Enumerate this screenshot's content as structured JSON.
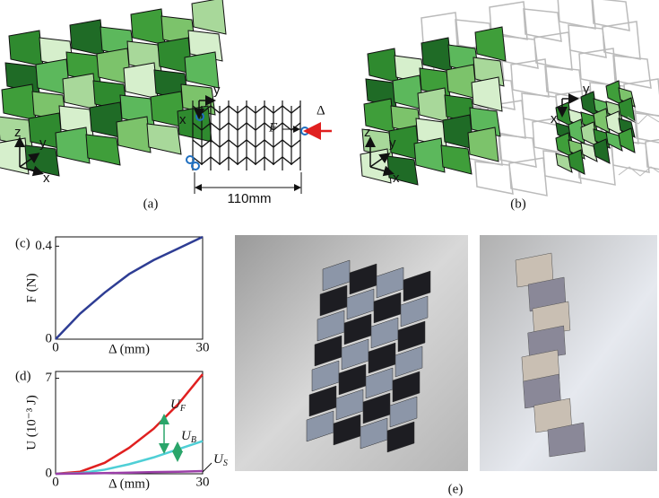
{
  "chart_data": [
    {
      "type": "line",
      "ylabel": "F (N)",
      "xlabel": "Δ (mm)",
      "x": [
        0,
        5,
        10,
        15,
        20,
        25,
        30
      ],
      "xlim": [
        0,
        30
      ],
      "xticks": [
        0,
        30
      ],
      "ylim": [
        0,
        0.44
      ],
      "yticks": [
        0,
        0.4
      ],
      "series": [
        {
          "color": "#2e3d94",
          "values": [
            0,
            0.11,
            0.2,
            0.28,
            0.34,
            0.39,
            0.44
          ]
        }
      ]
    },
    {
      "type": "line",
      "ylabel": "U (10⁻³ J)",
      "xlabel": "Δ (mm)",
      "x": [
        0,
        5,
        10,
        15,
        20,
        25,
        30
      ],
      "xlim": [
        0,
        30
      ],
      "xticks": [
        0,
        30
      ],
      "ylim": [
        0,
        7.5
      ],
      "yticks": [
        0,
        7
      ],
      "series": [
        {
          "color": "#e02020",
          "values": [
            0,
            0.15,
            0.8,
            1.9,
            3.3,
            5.1,
            7.3
          ]
        },
        {
          "color": "#4fcfd6",
          "values": [
            0,
            0.05,
            0.3,
            0.7,
            1.2,
            1.8,
            2.4
          ]
        },
        {
          "color": "#9b3fa8",
          "values": [
            0,
            0.02,
            0.05,
            0.08,
            0.12,
            0.15,
            0.2
          ]
        }
      ],
      "annotations": [
        {
          "text": "U",
          "sub": "F"
        },
        {
          "text": "U",
          "sub": "B"
        },
        {
          "text": "U",
          "sub": "S"
        }
      ]
    }
  ],
  "panels": {
    "labels": [
      "(a)",
      "(b)",
      "(c)",
      "(d)",
      "(e)"
    ],
    "a": {
      "axes": [
        "z",
        "y",
        "x"
      ],
      "inset_axes": [
        "y",
        "x"
      ],
      "force": "F",
      "displacement": "Δ",
      "width": "110mm"
    },
    "b": {
      "axes": [
        "z",
        "y",
        "x"
      ],
      "inset_axes": [
        "y",
        "x"
      ]
    }
  }
}
